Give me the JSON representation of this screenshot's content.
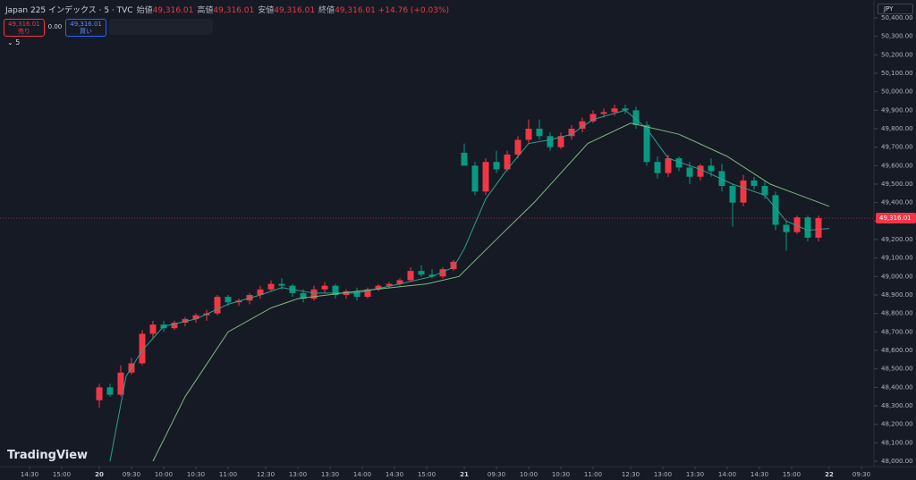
{
  "header": {
    "symbol": "Japan 225 インデックス · 5 · TVC",
    "ohlc": [
      {
        "label": "始値",
        "value": "49,316.01"
      },
      {
        "label": "高値",
        "value": "49,316.01"
      },
      {
        "label": "安値",
        "value": "49,316.01"
      },
      {
        "label": "終値",
        "value": "49,316.01"
      }
    ],
    "change": "+14.76 (+0.03%)"
  },
  "trade": {
    "sell_price": "49,316.01",
    "sell_label": "売り",
    "spread": "0.00",
    "buy_price": "49,316.01",
    "buy_label": "買い"
  },
  "indicator_count": "5",
  "currency": "JPY",
  "logo": "TradingView",
  "chart_data": {
    "type": "candlestick",
    "up_color": "#f23645",
    "down_color": "#089981",
    "x": [
      13,
      15,
      17,
      19,
      21,
      23,
      25,
      27,
      29,
      31,
      33,
      35,
      37,
      39,
      41,
      43,
      45,
      47,
      49,
      51,
      53,
      55,
      57,
      59,
      61,
      63,
      65,
      67,
      69,
      71,
      73,
      75,
      77,
      79,
      81,
      83,
      85,
      87,
      89,
      91,
      93,
      95,
      97,
      99,
      101,
      103,
      105,
      107,
      109,
      111,
      113,
      115,
      117,
      119,
      121,
      123,
      125,
      127,
      129,
      131,
      133,
      135,
      137,
      139,
      141,
      143,
      145,
      147
    ],
    "open": [
      48330,
      48400,
      48360,
      48480,
      48530,
      48690,
      48740,
      48720,
      48750,
      48770,
      48790,
      48800,
      48890,
      48860,
      48870,
      48900,
      48930,
      48960,
      48950,
      48910,
      48880,
      48930,
      48950,
      48900,
      48920,
      48890,
      48930,
      48950,
      48960,
      48980,
      49030,
      49010,
      49000,
      49040,
      49670,
      49600,
      49460,
      49620,
      49580,
      49660,
      49740,
      49800,
      49760,
      49700,
      49760,
      49800,
      49840,
      49880,
      49890,
      49910,
      49900,
      49820,
      49620,
      49560,
      49640,
      49590,
      49540,
      49600,
      49570,
      49490,
      49400,
      49520,
      49490,
      49440,
      49280,
      49240,
      49320,
      49210
    ],
    "high": [
      48420,
      48420,
      48520,
      48560,
      48710,
      48760,
      48760,
      48760,
      48780,
      48800,
      48820,
      48900,
      48900,
      48880,
      48910,
      48950,
      48980,
      48990,
      48960,
      48930,
      48950,
      48970,
      48960,
      48930,
      48940,
      48940,
      48960,
      48970,
      48990,
      49050,
      49060,
      49040,
      49050,
      49090,
      49720,
      49620,
      49640,
      49680,
      49680,
      49760,
      49850,
      49850,
      49780,
      49780,
      49820,
      49860,
      49900,
      49910,
      49930,
      49930,
      49920,
      49840,
      49650,
      49660,
      49650,
      49620,
      49610,
      49640,
      49610,
      49500,
      49550,
      49540,
      49520,
      49460,
      49300,
      49330,
      49330,
      49330
    ],
    "low": [
      48290,
      48350,
      48350,
      48470,
      48520,
      48660,
      48700,
      48710,
      48730,
      48750,
      48760,
      48790,
      48840,
      48840,
      48850,
      48880,
      48920,
      48930,
      48890,
      48860,
      48870,
      48910,
      48880,
      48880,
      48870,
      48880,
      48920,
      48940,
      48950,
      48970,
      49000,
      48990,
      48990,
      49030,
      49600,
      49440,
      49440,
      49560,
      49570,
      49640,
      49720,
      49740,
      49680,
      49690,
      49740,
      49780,
      49830,
      49860,
      49870,
      49880,
      49800,
      49600,
      49530,
      49540,
      49570,
      49500,
      49520,
      49540,
      49460,
      49270,
      49380,
      49470,
      49420,
      49250,
      49140,
      49230,
      49190,
      49190
    ],
    "close": [
      48400,
      48360,
      48480,
      48530,
      48690,
      48740,
      48720,
      48750,
      48770,
      48790,
      48800,
      48890,
      48860,
      48870,
      48900,
      48930,
      48960,
      48950,
      48910,
      48880,
      48930,
      48950,
      48900,
      48920,
      48890,
      48930,
      48950,
      48960,
      48980,
      49030,
      49010,
      49000,
      49040,
      49080,
      49600,
      49460,
      49620,
      49580,
      49660,
      49740,
      49800,
      49760,
      49700,
      49760,
      49800,
      49840,
      49880,
      49890,
      49910,
      49900,
      49820,
      49620,
      49560,
      49640,
      49590,
      49540,
      49600,
      49570,
      49490,
      49400,
      49520,
      49490,
      49440,
      49280,
      49240,
      49320,
      49210,
      49316.01
    ],
    "lines": [
      {
        "color": "#2f9e8f",
        "x": [
          15,
          18,
          21,
          25,
          31,
          37,
          43,
          47,
          53,
          61,
          69,
          75,
          79,
          81,
          85,
          89,
          93,
          97,
          101,
          105,
          111,
          115,
          119,
          125,
          131,
          137,
          141,
          145,
          149
        ],
        "values": [
          48000,
          48460,
          48600,
          48730,
          48770,
          48850,
          48900,
          48940,
          48910,
          48910,
          48960,
          49000,
          49050,
          49150,
          49420,
          49580,
          49720,
          49740,
          49770,
          49850,
          49900,
          49800,
          49640,
          49580,
          49500,
          49440,
          49300,
          49250,
          49260
        ]
      },
      {
        "color": "#7cb97e",
        "x": [
          23,
          29,
          37,
          45,
          50,
          61,
          74,
          80,
          88,
          94,
          104,
          112,
          121,
          130,
          138,
          149
        ],
        "values": [
          48000,
          48350,
          48700,
          48830,
          48880,
          48920,
          48960,
          49000,
          49230,
          49400,
          49720,
          49830,
          49770,
          49650,
          49500,
          49380
        ]
      }
    ],
    "xlim": [
      -5.5,
      157
    ],
    "xticks": [
      {
        "value": 0,
        "label": "14:30"
      },
      {
        "value": 6,
        "label": "15:00"
      },
      {
        "value": 13,
        "label": "20"
      },
      {
        "value": 19,
        "label": "09:30"
      },
      {
        "value": 25,
        "label": "10:00"
      },
      {
        "value": 31,
        "label": "10:30"
      },
      {
        "value": 37,
        "label": "11:00"
      },
      {
        "value": 44,
        "label": "12:30"
      },
      {
        "value": 50,
        "label": "13:00"
      },
      {
        "value": 56,
        "label": "13:30"
      },
      {
        "value": 62,
        "label": "14:00"
      },
      {
        "value": 68,
        "label": "14:30"
      },
      {
        "value": 74,
        "label": "15:00"
      },
      {
        "value": 81,
        "label": "21"
      },
      {
        "value": 87,
        "label": "09:30"
      },
      {
        "value": 93,
        "label": "10:00"
      },
      {
        "value": 99,
        "label": "10:30"
      },
      {
        "value": 105,
        "label": "11:00"
      },
      {
        "value": 112,
        "label": "12:30"
      },
      {
        "value": 118,
        "label": "13:00"
      },
      {
        "value": 124,
        "label": "13:30"
      },
      {
        "value": 130,
        "label": "14:00"
      },
      {
        "value": 136,
        "label": "14:30"
      },
      {
        "value": 142,
        "label": "15:00"
      },
      {
        "value": 149,
        "label": "22"
      },
      {
        "value": 155,
        "label": "09:30"
      }
    ],
    "ylim": [
      48000,
      50400
    ],
    "yticks": [
      {
        "value": 48000,
        "label": "48,000.00"
      },
      {
        "value": 48100,
        "label": "48,100.00"
      },
      {
        "value": 48200,
        "label": "48,200.00"
      },
      {
        "value": 48300,
        "label": "48,300.00"
      },
      {
        "value": 48400,
        "label": "48,400.00"
      },
      {
        "value": 48500,
        "label": "48,500.00"
      },
      {
        "value": 48600,
        "label": "48,600.00"
      },
      {
        "value": 48700,
        "label": "48,700.00"
      },
      {
        "value": 48800,
        "label": "48,800.00"
      },
      {
        "value": 48900,
        "label": "48,900.00"
      },
      {
        "value": 49000,
        "label": "49,000.00"
      },
      {
        "value": 49100,
        "label": "49,100.00"
      },
      {
        "value": 49200,
        "label": "49,200.00"
      },
      {
        "value": 49300,
        "label": "49,300.00"
      },
      {
        "value": 49400,
        "label": "49,400.00"
      },
      {
        "value": 49500,
        "label": "49,500.00"
      },
      {
        "value": 49600,
        "label": "49,600.00"
      },
      {
        "value": 49700,
        "label": "49,700.00"
      },
      {
        "value": 49800,
        "label": "49,800.00"
      },
      {
        "value": 49900,
        "label": "49,900.00"
      },
      {
        "value": 50000,
        "label": "50,000.00"
      },
      {
        "value": 50100,
        "label": "50,100.00"
      },
      {
        "value": 50200,
        "label": "50,200.00"
      },
      {
        "value": 50300,
        "label": "50,300.00"
      },
      {
        "value": 50400,
        "label": "50,400.00"
      }
    ],
    "last_price": {
      "value": 49316.01,
      "label": "49,316.01"
    }
  }
}
